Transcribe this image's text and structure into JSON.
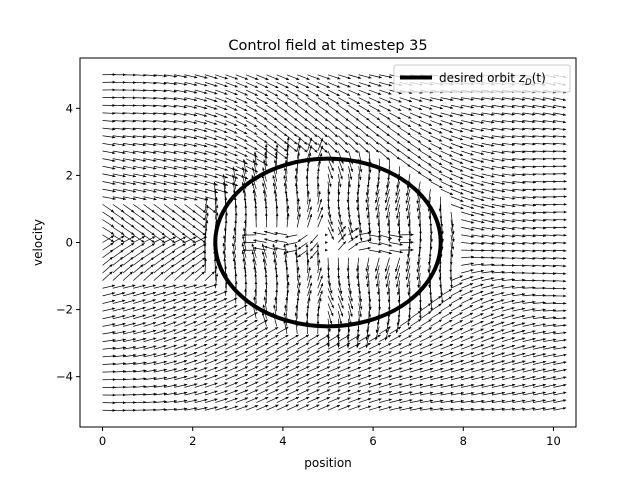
{
  "chart_data": {
    "type": "quiver",
    "title": "Control field at timestep 35",
    "xlabel": "position",
    "ylabel": "velocity",
    "xlim": [
      -0.5,
      10.5
    ],
    "ylim": [
      -5.5,
      5.5
    ],
    "xticks": [
      0,
      2,
      4,
      6,
      8,
      10
    ],
    "yticks": [
      -4,
      -2,
      0,
      2,
      4
    ],
    "xtick_labels": [
      "0",
      "2",
      "4",
      "6",
      "8",
      "10"
    ],
    "ytick_labels": [
      "−4",
      "−2",
      "0",
      "2",
      "4"
    ],
    "grid": false,
    "legend_position": "top-right",
    "field": {
      "x_range": [
        0,
        10
      ],
      "y_range": [
        -5,
        5
      ],
      "nx": 45,
      "ny": 45,
      "arrow_color": "#000000"
    },
    "series": [
      {
        "name": "desired orbit",
        "type": "ellipse",
        "center": [
          5.0,
          0.0
        ],
        "semi_axes": [
          2.5,
          2.5
        ],
        "color": "#000000"
      }
    ],
    "legend": {
      "label_text": "desired orbit ",
      "label_math": "z",
      "label_sub": "D",
      "label_tail": "(t)"
    }
  }
}
